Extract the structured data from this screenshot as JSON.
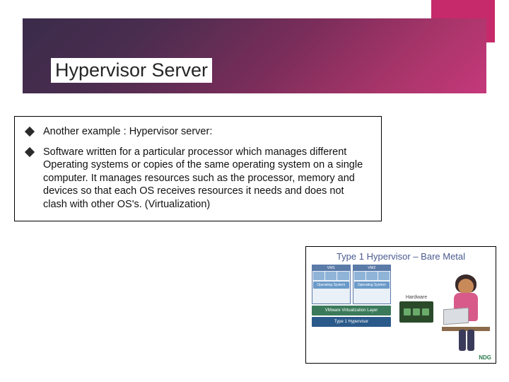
{
  "colors": {
    "accent": "#c62a6a",
    "header_gradient_start": "#3b2b4a",
    "header_gradient_end": "#c5387a",
    "text": "#111111",
    "border": "#000000"
  },
  "slide": {
    "title": "Hypervisor Server",
    "bullets": [
      "Another example : Hypervisor server:",
      "Software written for a particular processor which manages different Operating systems or copies of the same operating system on a single computer. It manages resources such as the processor, memory and devices so that each OS receives resources it needs and does not clash with other OS's.\n(Virtualization)"
    ]
  },
  "diagram": {
    "title": "Type 1 Hypervisor – Bare Metal",
    "vm_labels": [
      "VM1",
      "VM2"
    ],
    "sub_labels": [
      "App",
      "App",
      "App"
    ],
    "os_label": "Operating System",
    "virt_layer": "VMware Virtualization Layer",
    "hyp_layer": "Type 1 Hypervisor",
    "hardware_label": "Hardware",
    "brand": "NDG",
    "colors": {
      "title_color": "#4a5a8f",
      "vm_border": "#5a7aa8",
      "vm_bg": "#eaf0f8",
      "vm_header": "#5a7aa8",
      "os_bg": "#6a9ac8",
      "virt_bg": "#3a7a5a",
      "hyp_bg": "#2a5a8a",
      "hw_bg": "#2a4a2a",
      "person_shirt": "#d85a8a",
      "person_skin": "#c98a5a",
      "person_hair": "#3a2a2a",
      "brand_color": "#2a7a4a"
    }
  }
}
